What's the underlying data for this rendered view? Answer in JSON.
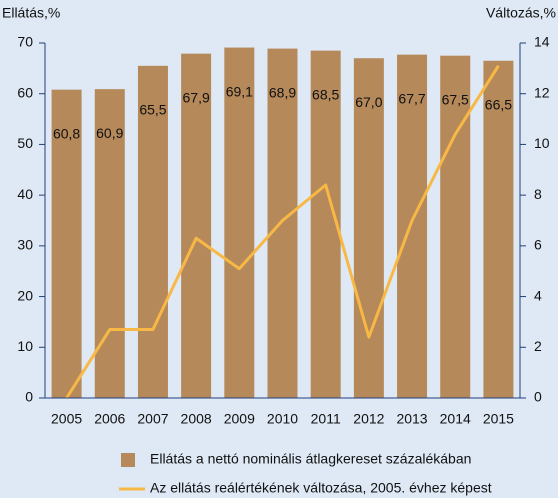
{
  "chart_data": {
    "type": "bar",
    "ylabel": "Ellátás,%",
    "y2label": "Változás,%",
    "categories": [
      "2005",
      "2006",
      "2007",
      "2008",
      "2009",
      "2010",
      "2011",
      "2012",
      "2013",
      "2014",
      "2015"
    ],
    "series": [
      {
        "name": "Ellátás a nettó nominális átlagkereset százalékában",
        "type": "bar",
        "color": "#b5895a",
        "values": [
          60.8,
          60.9,
          65.5,
          67.9,
          69.1,
          68.9,
          68.5,
          67.0,
          67.7,
          67.5,
          66.5
        ],
        "value_labels": [
          "60,8",
          "60,9",
          "65,5",
          "67,9",
          "69,1",
          "68,9",
          "68,5",
          "67,0",
          "67,7",
          "67,5",
          "66,5"
        ]
      },
      {
        "name": "Az ellátás reálértékének változása, 2005. évhez képest",
        "type": "line",
        "color": "#f8b846",
        "axis": "y2",
        "values": [
          0,
          2.7,
          2.7,
          6.3,
          5.1,
          7.0,
          8.4,
          2.4,
          7.0,
          10.4,
          13.1
        ]
      }
    ],
    "ylim": [
      0,
      70
    ],
    "yticks": [
      0,
      10,
      20,
      30,
      40,
      50,
      60,
      70
    ],
    "y2lim": [
      0,
      14
    ],
    "y2ticks": [
      0,
      2,
      4,
      6,
      8,
      10,
      12,
      14
    ]
  }
}
